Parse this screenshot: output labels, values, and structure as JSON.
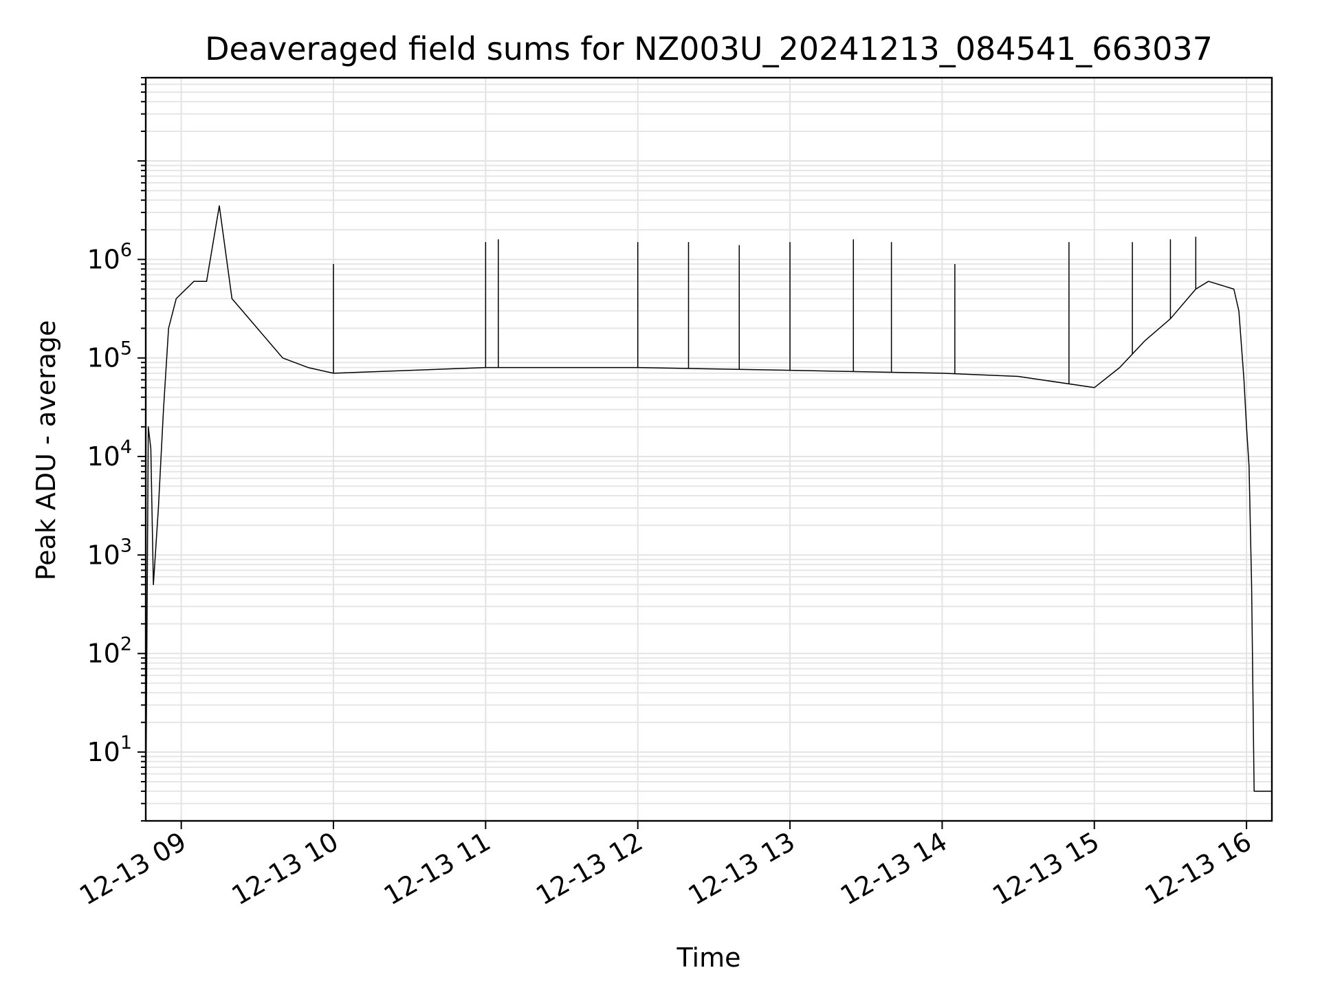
{
  "chart_data": {
    "type": "line",
    "title": "Deaveraged field sums for NZ003U_20241213_084541_663037",
    "xlabel": "Time",
    "ylabel": "Peak ADU - average",
    "yscale": "log",
    "ylim": [
      2,
      70000000
    ],
    "xlim": [
      "2024-12-13 08:46",
      "2024-12-13 16:10"
    ],
    "grid": true,
    "x_ticks": [
      {
        "value": "2024-12-13 09:00",
        "label": "12-13 09"
      },
      {
        "value": "2024-12-13 10:00",
        "label": "12-13 10"
      },
      {
        "value": "2024-12-13 11:00",
        "label": "12-13 11"
      },
      {
        "value": "2024-12-13 12:00",
        "label": "12-13 12"
      },
      {
        "value": "2024-12-13 13:00",
        "label": "12-13 13"
      },
      {
        "value": "2024-12-13 14:00",
        "label": "12-13 14"
      },
      {
        "value": "2024-12-13 15:00",
        "label": "12-13 15"
      },
      {
        "value": "2024-12-13 16:00",
        "label": "12-13 16"
      }
    ],
    "y_ticks": [
      {
        "value": 10,
        "base": "10",
        "exp": "1"
      },
      {
        "value": 100,
        "base": "10",
        "exp": "2"
      },
      {
        "value": 1000,
        "base": "10",
        "exp": "3"
      },
      {
        "value": 10000,
        "base": "10",
        "exp": "4"
      },
      {
        "value": 100000,
        "base": "10",
        "exp": "5"
      },
      {
        "value": 1000000,
        "base": "10",
        "exp": "6"
      }
    ],
    "series": [
      {
        "color": "#000000",
        "points": [
          [
            "2024-12-13 08:46",
            2
          ],
          [
            "2024-12-13 08:47",
            20000
          ],
          [
            "2024-12-13 08:48",
            12000
          ],
          [
            "2024-12-13 08:49",
            500
          ],
          [
            "2024-12-13 08:51",
            3000
          ],
          [
            "2024-12-13 08:53",
            30000
          ],
          [
            "2024-12-13 08:55",
            200000
          ],
          [
            "2024-12-13 08:58",
            400000
          ],
          [
            "2024-12-13 09:05",
            600000
          ],
          [
            "2024-12-13 09:10",
            600000
          ],
          [
            "2024-12-13 09:15",
            3500000
          ],
          [
            "2024-12-13 09:20",
            400000
          ],
          [
            "2024-12-13 09:30",
            200000
          ],
          [
            "2024-12-13 09:40",
            100000
          ],
          [
            "2024-12-13 09:50",
            80000
          ],
          [
            "2024-12-13 10:00",
            70000
          ],
          [
            "2024-12-13 11:00",
            80000
          ],
          [
            "2024-12-13 12:00",
            80000
          ],
          [
            "2024-12-13 13:00",
            75000
          ],
          [
            "2024-12-13 14:00",
            70000
          ],
          [
            "2024-12-13 14:30",
            65000
          ],
          [
            "2024-12-13 15:00",
            50000
          ],
          [
            "2024-12-13 15:10",
            80000
          ],
          [
            "2024-12-13 15:20",
            150000
          ],
          [
            "2024-12-13 15:30",
            250000
          ],
          [
            "2024-12-13 15:40",
            500000
          ],
          [
            "2024-12-13 15:45",
            600000
          ],
          [
            "2024-12-13 15:55",
            500000
          ],
          [
            "2024-12-13 15:57",
            300000
          ],
          [
            "2024-12-13 15:59",
            60000
          ],
          [
            "2024-12-13 16:00",
            20000
          ],
          [
            "2024-12-13 16:01",
            8000
          ],
          [
            "2024-12-13 16:02",
            500
          ],
          [
            "2024-12-13 16:03",
            4
          ],
          [
            "2024-12-13 16:10",
            4
          ]
        ],
        "spikes": [
          [
            "2024-12-13 09:15",
            3500000
          ],
          [
            "2024-12-13 10:00",
            900000
          ],
          [
            "2024-12-13 11:00",
            1500000
          ],
          [
            "2024-12-13 11:05",
            1600000
          ],
          [
            "2024-12-13 12:00",
            1500000
          ],
          [
            "2024-12-13 12:20",
            1500000
          ],
          [
            "2024-12-13 12:40",
            1400000
          ],
          [
            "2024-12-13 13:00",
            1500000
          ],
          [
            "2024-12-13 13:25",
            1600000
          ],
          [
            "2024-12-13 13:40",
            1500000
          ],
          [
            "2024-12-13 14:05",
            900000
          ],
          [
            "2024-12-13 14:50",
            1500000
          ],
          [
            "2024-12-13 15:15",
            1500000
          ],
          [
            "2024-12-13 15:30",
            1600000
          ],
          [
            "2024-12-13 15:40",
            1700000
          ]
        ]
      }
    ]
  }
}
